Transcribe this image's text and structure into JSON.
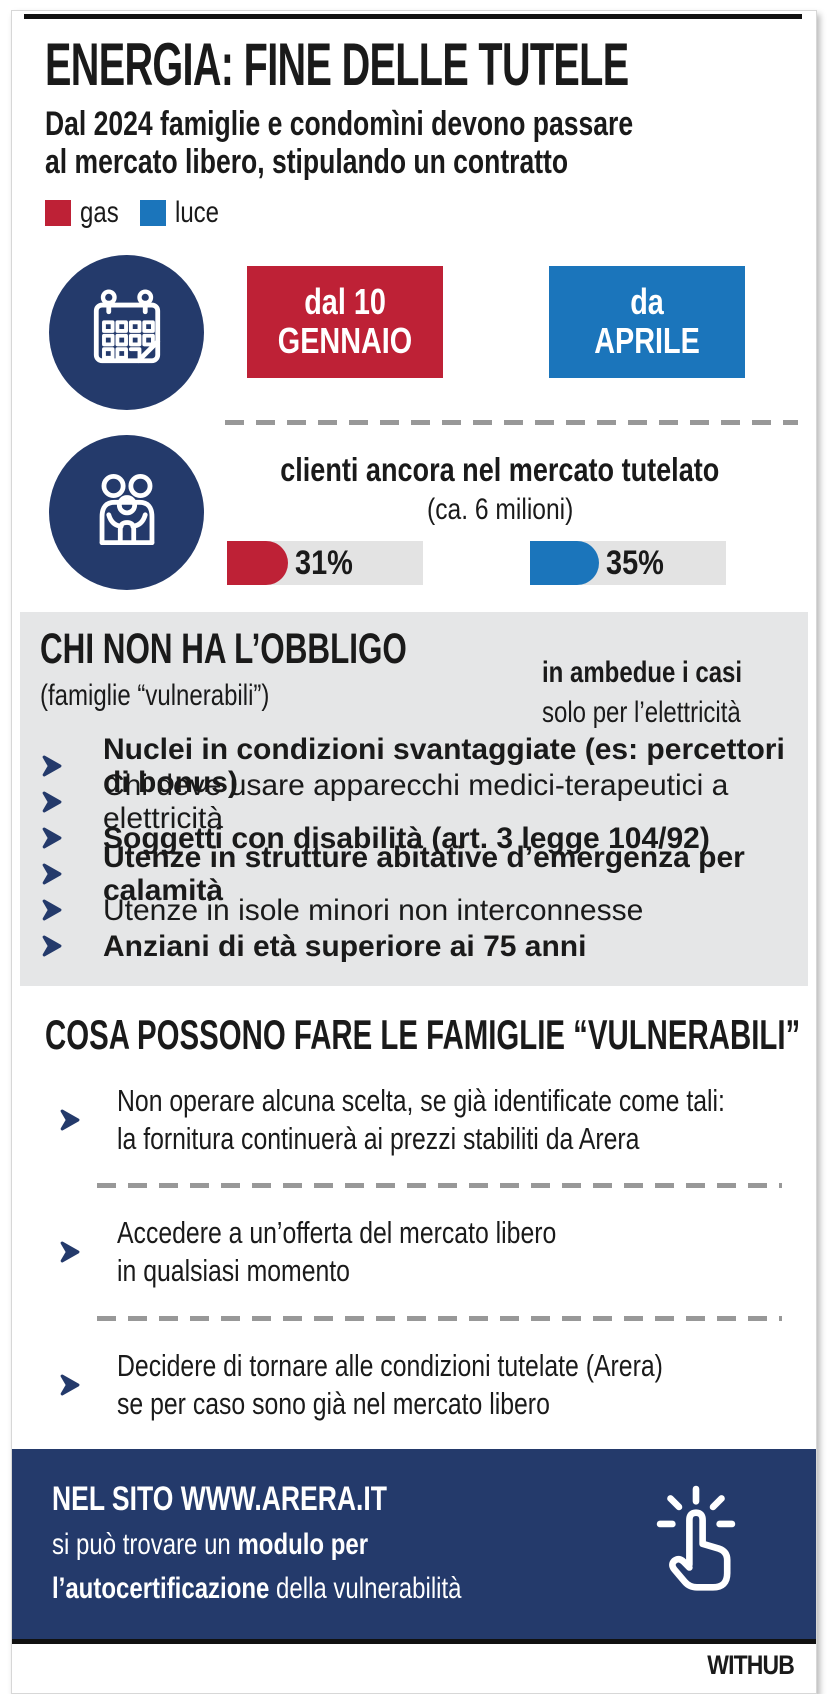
{
  "header": {
    "title": "ENERGIA: FINE DELLE TUTELE",
    "subtitle_line1": "Dal 2024 famiglie e condomìni devono passare",
    "subtitle_line2": "al mercato libero, stipulando un contratto"
  },
  "legend": {
    "items": [
      {
        "label": "gas",
        "color": "#be2136"
      },
      {
        "label": "luce",
        "color": "#1b75bb"
      }
    ]
  },
  "timeline": {
    "gas_line1": "dal 10",
    "gas_line2": "GENNAIO",
    "luce_line1": "da",
    "luce_line2": "APRILE"
  },
  "clients": {
    "title": "clienti ancora nel mercato tutelato",
    "subtitle": "(ca. 6 milioni)",
    "gas_value_label": "31%",
    "luce_value_label": "35%"
  },
  "chart_data": {
    "type": "bar",
    "title": "clienti ancora nel mercato tutelato (ca. 6 milioni)",
    "categories": [
      "gas",
      "luce"
    ],
    "values": [
      31,
      35
    ],
    "unit": "%",
    "colors": [
      "#be2136",
      "#1b75bb"
    ],
    "xlabel": "",
    "ylabel": "",
    "ylim": [
      0,
      100
    ],
    "legend_position": "top-left",
    "grid": false
  },
  "no_obligation": {
    "title": "CHI NON HA L’OBBLIGO",
    "subtitle": "(famiglie “vulnerabili”)",
    "note_line1": "in ambedue i casi",
    "note_line2": "solo per l’elettricità",
    "items": [
      {
        "text": "Nuclei in condizioni svantaggiate (es: percettori di bonus)",
        "bold": true
      },
      {
        "text": "Chi deve usare apparecchi medici-terapeutici a elettricità",
        "bold": false
      },
      {
        "text": "Soggetti con disabilità (art. 3 legge 104/92)",
        "bold": true
      },
      {
        "text": "Utenze in strutture abitative d’emergenza per calamità",
        "bold": true
      },
      {
        "text": "Utenze in isole minori non interconnesse",
        "bold": false
      },
      {
        "text": "Anziani di età superiore ai 75 anni",
        "bold": true
      }
    ]
  },
  "actions": {
    "title": "COSA POSSONO FARE LE FAMIGLIE “VULNERABILI”",
    "items": [
      {
        "line1": "Non operare alcuna scelta, se già identificate come tali:",
        "line2": "la fornitura continuerà ai prezzi stabiliti da Arera"
      },
      {
        "line1": "Accedere a un’offerta del mercato libero",
        "line2": "in qualsiasi momento"
      },
      {
        "line1": "Decidere di tornare alle condizioni tutelate (Arera)",
        "line2": "se per caso sono già nel mercato libero"
      }
    ]
  },
  "footer": {
    "title": "NEL SITO WWW.ARERA.IT",
    "line2_pre": "si può trovare un ",
    "line2_bold": "modulo per",
    "line3_bold": "l’autocertificazione",
    "line3_post": " della vulnerabilità",
    "brand": "WITHUB"
  },
  "colors": {
    "navy": "#243a6b",
    "red": "#be2136",
    "blue": "#1b75bb",
    "panel_gray": "#e5e6e7",
    "bar_track_gray": "#e3e3e3",
    "rule_black": "#111111"
  }
}
